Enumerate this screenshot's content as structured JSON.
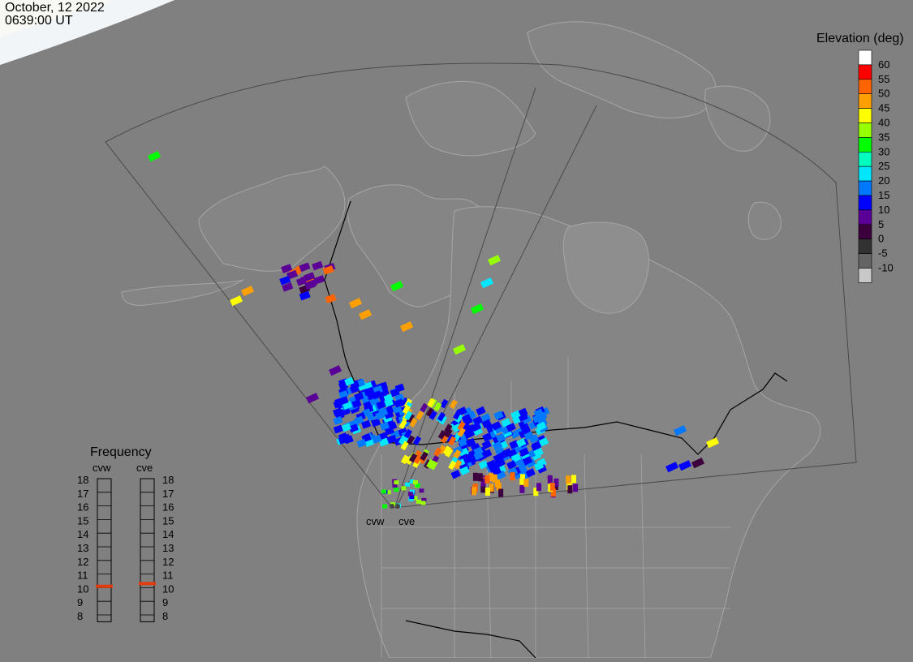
{
  "header": {
    "date": "October, 12 2022",
    "time": "0639:00 UT"
  },
  "colors": {
    "background": "#808080",
    "land": "#8a8a8a",
    "coastline": "#a6a6a6",
    "border": "#000000",
    "fov_outline": "#4d4d4d",
    "daylight": "#f8f8f4",
    "frequency_marker": "#e03c10"
  },
  "legend": {
    "title": "Elevation (deg)",
    "ticks": [
      "60",
      "55",
      "50",
      "45",
      "40",
      "35",
      "30",
      "25",
      "20",
      "15",
      "10",
      "5",
      "0",
      "-5",
      "-10"
    ],
    "colors": [
      "#ffffff",
      "#ff0000",
      "#ff6400",
      "#ffa000",
      "#ffff00",
      "#96ff00",
      "#00ff00",
      "#00ffbe",
      "#00e6ff",
      "#0078ff",
      "#0000ff",
      "#5a0096",
      "#3c003c",
      "#323232",
      "#646464",
      "#c8c8c8"
    ]
  },
  "frequency": {
    "title": "Frequency",
    "radars": [
      {
        "name": "cvw",
        "freq_mhz": 10.6
      },
      {
        "name": "cve",
        "freq_mhz": 10.8
      }
    ],
    "scale": [
      "18",
      "17",
      "16",
      "15",
      "14",
      "13",
      "12",
      "11",
      "10",
      "9",
      "8"
    ]
  },
  "radars": [
    {
      "name": "cvw",
      "icon": "radar-site-dot"
    },
    {
      "name": "cve",
      "icon": "radar-site-dot"
    }
  ]
}
